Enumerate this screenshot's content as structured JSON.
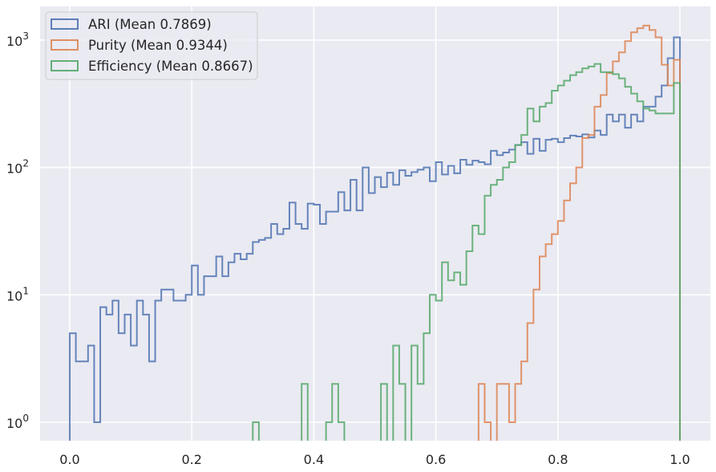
{
  "chart_data": {
    "type": "histogram",
    "title": "",
    "xlabel": "",
    "ylabel": "",
    "xscale": "linear",
    "yscale": "log",
    "xlim": [
      -0.05,
      1.05
    ],
    "ylim": [
      0.7,
      1500
    ],
    "grid": true,
    "legend_position": "upper left",
    "x_ticks": [
      0.0,
      0.2,
      0.4,
      0.6,
      0.8,
      1.0
    ],
    "x_tick_labels": [
      "0.0",
      "0.2",
      "0.4",
      "0.6",
      "0.8",
      "1.0"
    ],
    "y_ticks": [
      1,
      10,
      100,
      1000
    ],
    "y_tick_labels": [
      {
        "base": "10",
        "exp": "0"
      },
      {
        "base": "10",
        "exp": "1"
      },
      {
        "base": "10",
        "exp": "2"
      },
      {
        "base": "10",
        "exp": "3"
      }
    ],
    "bin_start": 0.0,
    "bin_width": 0.01,
    "bin_count": 100,
    "background_color": "#EAEAF2",
    "grid_color": "#FFFFFF",
    "series": [
      {
        "name": "ARI (Mean 0.7869)",
        "color": "#4C72B0",
        "values": [
          5,
          3,
          3,
          4,
          1,
          8,
          7,
          9,
          5,
          7,
          4,
          9,
          7,
          3,
          9,
          11,
          11,
          9,
          9,
          10,
          17,
          10,
          14,
          14,
          20,
          14,
          18,
          21,
          19,
          21,
          26,
          27,
          28,
          36,
          30,
          33,
          53,
          36,
          33,
          52,
          51,
          36,
          45,
          45,
          64,
          46,
          80,
          46,
          100,
          63,
          84,
          70,
          91,
          73,
          95,
          86,
          92,
          96,
          100,
          78,
          110,
          88,
          103,
          90,
          115,
          105,
          113,
          110,
          106,
          135,
          125,
          131,
          138,
          150,
          158,
          128,
          168,
          135,
          165,
          168,
          158,
          170,
          178,
          175,
          182,
          172,
          195,
          180,
          260,
          230,
          260,
          205,
          260,
          230,
          300,
          300,
          360,
          440,
          720,
          1050
        ]
      },
      {
        "name": "Purity (Mean 0.9344)",
        "color": "#DD8452",
        "values": [
          0,
          0,
          0,
          0,
          0,
          0,
          0,
          0,
          0,
          0,
          0,
          0,
          0,
          0,
          0,
          0,
          0,
          0,
          0,
          0,
          0,
          0,
          0,
          0,
          0,
          0,
          0,
          0,
          0,
          0,
          0,
          0,
          0,
          0,
          0,
          0,
          0,
          0,
          0,
          0,
          0,
          0,
          0,
          0,
          0,
          0,
          0,
          0,
          0,
          0,
          0,
          0,
          0,
          0,
          0,
          0,
          0,
          0,
          0,
          0,
          0,
          0,
          0,
          0,
          0,
          0,
          0,
          2,
          1,
          0,
          2,
          2,
          1,
          2,
          3,
          6,
          11,
          20,
          25,
          30,
          38,
          55,
          75,
          100,
          170,
          180,
          300,
          370,
          550,
          680,
          800,
          980,
          1150,
          1240,
          1300,
          1200,
          1050,
          640,
          440,
          700
        ]
      },
      {
        "name": "Efficiency (Mean 0.8667)",
        "color": "#55A868",
        "values": [
          0,
          0,
          0,
          0,
          0,
          0,
          0,
          0,
          0,
          0,
          0,
          0,
          0,
          0,
          0,
          0,
          0,
          0,
          0,
          0,
          0,
          0,
          0,
          0,
          0,
          0,
          0,
          0,
          0,
          0,
          1,
          0,
          0,
          0,
          0,
          0,
          0,
          0,
          2,
          0,
          0,
          0,
          1,
          2,
          1,
          0,
          0,
          0,
          0,
          0,
          0,
          2,
          0,
          4,
          2,
          0,
          4,
          2,
          5,
          10,
          9,
          18,
          13,
          15,
          12,
          22,
          35,
          30,
          60,
          73,
          80,
          100,
          110,
          150,
          180,
          290,
          230,
          300,
          320,
          400,
          440,
          480,
          530,
          560,
          600,
          620,
          650,
          560,
          560,
          540,
          500,
          430,
          380,
          330,
          290,
          280,
          265,
          265,
          265,
          460
        ]
      }
    ]
  }
}
